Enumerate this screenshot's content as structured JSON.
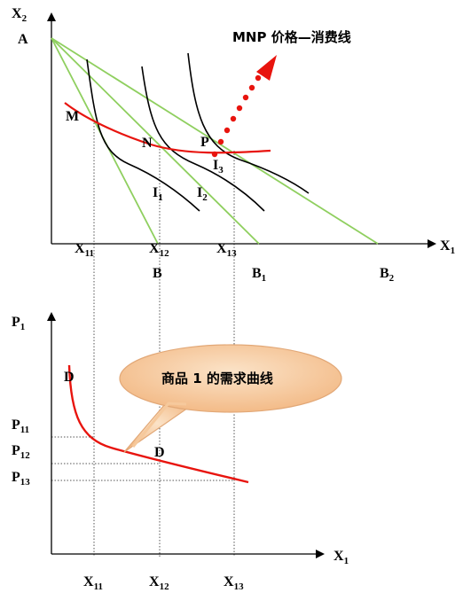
{
  "top": {
    "axis_y": {
      "main": "X",
      "sub": "2"
    },
    "axis_x": {
      "main": "X",
      "sub": "1"
    },
    "point_a": "A",
    "point_m": "M",
    "point_n": "N",
    "point_p": "P",
    "curve_i1": {
      "main": "I",
      "sub": "1"
    },
    "curve_i2": {
      "main": "I",
      "sub": "2"
    },
    "curve_i3": {
      "main": "I",
      "sub": "3"
    },
    "mnp_label": "MNP 价格—消费线",
    "x_ticks": [
      {
        "main": "X",
        "sub": "11"
      },
      {
        "main": "X",
        "sub": "12"
      },
      {
        "main": "X",
        "sub": "13"
      }
    ],
    "intercept_b": {
      "main": "B",
      "sub": ""
    },
    "intercept_b1": {
      "main": "B",
      "sub": "1"
    },
    "intercept_b2": {
      "main": "B",
      "sub": "2"
    }
  },
  "bottom": {
    "axis_y": {
      "main": "P",
      "sub": "1"
    },
    "axis_x": {
      "main": "X",
      "sub": "1"
    },
    "demand_label_top": "D",
    "demand_label_bottom": "D",
    "callout": "商品 1 的需求曲线",
    "p_ticks": [
      {
        "main": "P",
        "sub": "11"
      },
      {
        "main": "P",
        "sub": "12"
      },
      {
        "main": "P",
        "sub": "13"
      }
    ],
    "x_ticks": [
      {
        "main": "X",
        "sub": "11"
      },
      {
        "main": "X",
        "sub": "12"
      },
      {
        "main": "X",
        "sub": "13"
      }
    ]
  },
  "colors": {
    "budget_line": "#8fcf5f",
    "pcc_line": "#e8140e",
    "demand_curve": "#e8140e",
    "callout_fill": "#f6c99c",
    "callout_stroke": "#e2a877"
  }
}
